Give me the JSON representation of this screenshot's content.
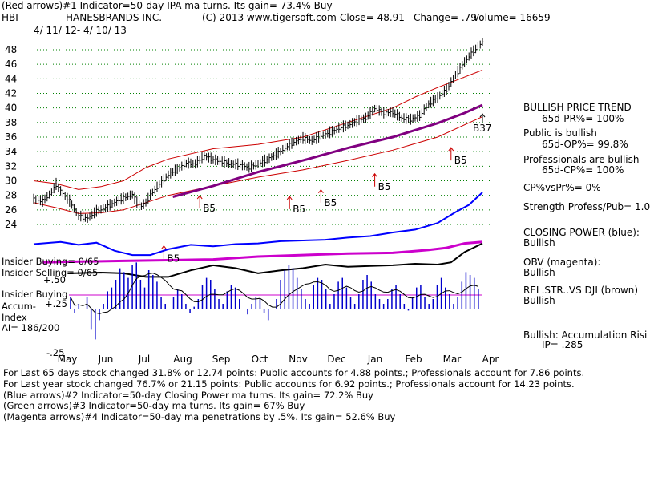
{
  "header": {
    "line1": "(Red arrows)#1 Indicator=50-day IPA ma turns. Its gain= 73.4% Buy",
    "ticker": "HBI",
    "company": "HANESBRANDS INC.",
    "copyright": "(C) 2013 www.tigersoft.com",
    "close": "Close=  48.91",
    "change": "Change= .79",
    "volume": "Volume= 16659",
    "date_range": "4/ 11/ 12-  4/ 10/ 13"
  },
  "chart_data": {
    "type": "line",
    "title": "HANESBRANDS INC. (HBI)",
    "x_labels": [
      "May",
      "Jun",
      "Jul",
      "Aug",
      "Sep",
      "Oct",
      "Nov",
      "Dec",
      "Jan",
      "Feb",
      "Mar",
      "Apr"
    ],
    "y_ticks": [
      24,
      26,
      28,
      30,
      32,
      34,
      36,
      38,
      40,
      42,
      44,
      46,
      48
    ],
    "ylim": [
      23,
      50
    ],
    "price_path": [
      [
        0,
        27.5
      ],
      [
        2,
        27.2
      ],
      [
        4,
        28.4
      ],
      [
        5,
        29.5
      ],
      [
        6,
        28.6
      ],
      [
        8,
        27.2
      ],
      [
        10,
        25.2
      ],
      [
        12,
        24.8
      ],
      [
        14,
        25.8
      ],
      [
        16,
        26.3
      ],
      [
        18,
        27.0
      ],
      [
        20,
        27.6
      ],
      [
        22,
        28.1
      ],
      [
        23,
        27.0
      ],
      [
        24,
        26.5
      ],
      [
        25,
        27.0
      ],
      [
        26,
        28.0
      ],
      [
        28,
        29.5
      ],
      [
        30,
        30.8
      ],
      [
        32,
        31.6
      ],
      [
        34,
        32.4
      ],
      [
        36,
        32.3
      ],
      [
        38,
        33.4
      ],
      [
        40,
        32.9
      ],
      [
        42,
        32.6
      ],
      [
        44,
        32.3
      ],
      [
        46,
        32.2
      ],
      [
        48,
        31.8
      ],
      [
        50,
        32.3
      ],
      [
        52,
        32.9
      ],
      [
        54,
        33.6
      ],
      [
        56,
        34.5
      ],
      [
        58,
        35.3
      ],
      [
        60,
        35.8
      ],
      [
        62,
        35.5
      ],
      [
        64,
        36.1
      ],
      [
        66,
        36.6
      ],
      [
        68,
        37.2
      ],
      [
        70,
        37.6
      ],
      [
        72,
        38.2
      ],
      [
        74,
        38.6
      ],
      [
        76,
        39.9
      ],
      [
        78,
        39.3
      ],
      [
        80,
        39.4
      ],
      [
        82,
        38.6
      ],
      [
        84,
        38.4
      ],
      [
        86,
        38.9
      ],
      [
        88,
        40.5
      ],
      [
        90,
        41.4
      ],
      [
        92,
        42.5
      ],
      [
        94,
        44.5
      ],
      [
        96,
        46.3
      ],
      [
        98,
        47.8
      ],
      [
        100,
        49.0
      ]
    ],
    "ma50_path": [
      [
        31,
        27.8
      ],
      [
        40,
        29.3
      ],
      [
        50,
        31.2
      ],
      [
        60,
        32.8
      ],
      [
        70,
        34.5
      ],
      [
        80,
        36.0
      ],
      [
        90,
        37.9
      ],
      [
        96,
        39.3
      ],
      [
        100,
        40.4
      ]
    ],
    "ma_label": "B37",
    "upper_band_path": [
      [
        0,
        30
      ],
      [
        5,
        29.6
      ],
      [
        10,
        28.8
      ],
      [
        15,
        29.2
      ],
      [
        20,
        30.0
      ],
      [
        25,
        31.8
      ],
      [
        30,
        33.0
      ],
      [
        40,
        34.4
      ],
      [
        50,
        35.0
      ],
      [
        60,
        36.0
      ],
      [
        70,
        38.0
      ],
      [
        80,
        40.0
      ],
      [
        85,
        41.5
      ],
      [
        90,
        42.8
      ],
      [
        95,
        44.0
      ],
      [
        100,
        45.2
      ]
    ],
    "lower_band_path": [
      [
        0,
        27
      ],
      [
        5,
        26.3
      ],
      [
        10,
        25.5
      ],
      [
        15,
        25.6
      ],
      [
        20,
        26.0
      ],
      [
        25,
        27.0
      ],
      [
        30,
        28.0
      ],
      [
        40,
        29.3
      ],
      [
        50,
        30.5
      ],
      [
        60,
        31.5
      ],
      [
        70,
        32.8
      ],
      [
        80,
        34.2
      ],
      [
        90,
        36.0
      ],
      [
        100,
        38.8
      ]
    ],
    "b5_signals": [
      {
        "x": 37,
        "y": 26.2,
        "label": "B5"
      },
      {
        "x": 57,
        "y": 26.1,
        "label": "B5"
      },
      {
        "x": 64,
        "y": 27.0,
        "label": "B5"
      },
      {
        "x": 76,
        "y": 29.2,
        "label": "B5"
      },
      {
        "x": 93,
        "y": 32.8,
        "label": "B5"
      },
      {
        "x": 29,
        "y": 19.3,
        "label": "B5"
      }
    ],
    "closing_power": {
      "name": "Closing Power (blue)",
      "color": "#0000ff",
      "path": [
        [
          0,
          21.3
        ],
        [
          6,
          21.6
        ],
        [
          10,
          21.2
        ],
        [
          14,
          21.5
        ],
        [
          18,
          20.4
        ],
        [
          22,
          19.8
        ],
        [
          26,
          19.8
        ],
        [
          30,
          20.6
        ],
        [
          35,
          21.2
        ],
        [
          40,
          21.0
        ],
        [
          45,
          21.3
        ],
        [
          50,
          21.4
        ],
        [
          55,
          21.7
        ],
        [
          60,
          21.8
        ],
        [
          65,
          21.9
        ],
        [
          70,
          22.2
        ],
        [
          75,
          22.4
        ],
        [
          80,
          22.9
        ],
        [
          85,
          23.3
        ],
        [
          90,
          24.2
        ],
        [
          94,
          25.7
        ],
        [
          97,
          26.7
        ],
        [
          100,
          28.4
        ]
      ]
    },
    "obv": {
      "name": "OBV (magenta)",
      "color": "#cc00cc",
      "path": [
        [
          2,
          18.8
        ],
        [
          10,
          18.9
        ],
        [
          20,
          19.0
        ],
        [
          30,
          19.1
        ],
        [
          40,
          19.2
        ],
        [
          50,
          19.6
        ],
        [
          60,
          19.8
        ],
        [
          70,
          20.0
        ],
        [
          80,
          20.1
        ],
        [
          88,
          20.5
        ],
        [
          92,
          20.8
        ],
        [
          96,
          21.4
        ],
        [
          100,
          21.6
        ]
      ]
    },
    "rel_strength": {
      "name": "REL.STR..VS DJI (brown)",
      "color": "#000000",
      "path": [
        [
          8,
          17.3
        ],
        [
          15,
          17.4
        ],
        [
          20,
          17.3
        ],
        [
          25,
          16.8
        ],
        [
          30,
          16.8
        ],
        [
          35,
          17.7
        ],
        [
          40,
          18.4
        ],
        [
          45,
          18.0
        ],
        [
          50,
          17.3
        ],
        [
          55,
          17.7
        ],
        [
          60,
          18.0
        ],
        [
          65,
          18.5
        ],
        [
          70,
          18.2
        ],
        [
          75,
          18.3
        ],
        [
          80,
          18.4
        ],
        [
          85,
          18.6
        ],
        [
          90,
          18.5
        ],
        [
          93,
          18.8
        ],
        [
          96,
          20.2
        ],
        [
          100,
          21.4
        ]
      ]
    },
    "accum_index": {
      "name": "Accumulation Index",
      "color": "#0000cc",
      "values": [
        0.12,
        -0.05,
        0.05,
        0.0,
        0.12,
        -0.22,
        -0.32,
        -0.12,
        0.05,
        0.18,
        0.22,
        0.3,
        0.42,
        0.38,
        0.32,
        0.45,
        0.48,
        0.3,
        0.22,
        0.4,
        0.35,
        0.28,
        0.12,
        0.05,
        0.0,
        0.12,
        0.2,
        0.15,
        0.05,
        -0.05,
        0.02,
        0.1,
        0.25,
        0.32,
        0.3,
        0.2,
        0.1,
        0.05,
        0.18,
        0.25,
        0.22,
        0.1,
        0.0,
        -0.06,
        0.05,
        0.12,
        0.1,
        -0.05,
        -0.12,
        0.0,
        0.1,
        0.3,
        0.4,
        0.45,
        0.42,
        0.32,
        0.2,
        0.1,
        0.05,
        0.25,
        0.32,
        0.3,
        0.2,
        0.05,
        0.15,
        0.28,
        0.32,
        0.22,
        0.12,
        0.05,
        0.15,
        0.3,
        0.35,
        0.28,
        0.15,
        0.1,
        0.05,
        0.1,
        0.2,
        0.25,
        0.15,
        0.05,
        -0.02,
        0.12,
        0.22,
        0.25,
        0.12,
        0.05,
        0.1,
        0.25,
        0.32,
        0.22,
        0.15,
        0.05,
        0.12,
        0.28,
        0.38,
        0.35,
        0.32,
        0.2
      ]
    },
    "accum_scale": [
      "+.50",
      "+.25",
      "-.25"
    ]
  },
  "left_labels": {
    "insider_buying": "Insider Buying= 0/65",
    "insider_selling": "Insider Selling= 0/65",
    "plus50": "+.50",
    "insider_buying2": "Insider Buying",
    "accum": "Accum-",
    "plus25": "+.25",
    "index": "Index",
    "ai": "AI= 186/200",
    "minus25": "-.25"
  },
  "right_panel": {
    "trend_title": "BULLISH PRICE TREND",
    "pr": "65d-PR%= 100%",
    "public_bullish": "Public is bullish",
    "op": "65d-OP%= 99.8%",
    "pros_bullish": "Professionals are bullish",
    "cp": "65d-CP%= 100%",
    "cpvspr": "CP%vsPr%=  0%",
    "strength": "Strength Profess/Pub= 1.0",
    "closing_power": "CLOSING POWER (blue):",
    "closing_power_val": "Bullish",
    "obv": "OBV (magenta):",
    "obv_val": "Bullish",
    "relstr": "REL.STR..VS DJI (brown)",
    "relstr_val": "Bullish",
    "accum": "Bullish: Accumulation Risi",
    "ip": "IP=  .285"
  },
  "footer": {
    "line1": "For Last 65 days stock changed  31.8% or 12.74 points:  Public accounts for  4.88 points.;  Professionals account for  7.86 points.",
    "line2": "For Last year stock changed  76.7% or  21.15 points:  Public accounts for  6.92 points.;  Professionals account for  14.23 points.",
    "line3": "(Blue arrows)#2 Indicator=50-day Closing Power ma turns. Its gain= 72.2% Buy",
    "line4": "(Green arrows)#3 Indicator=50-day ma turns. Its gain= 67% Buy",
    "line5": "(Magenta arrows)#4 Indicator=50-day ma penetrations by .5%. Its gain= 52.6% Buy"
  },
  "colors": {
    "price": "#000000",
    "ma": "#800080",
    "band": "#cc0000",
    "grid": "#008000",
    "blue": "#0000ff",
    "magenta": "#cc00cc",
    "arrow_red": "#cc0000",
    "arrow_blue": "#0000ff"
  }
}
